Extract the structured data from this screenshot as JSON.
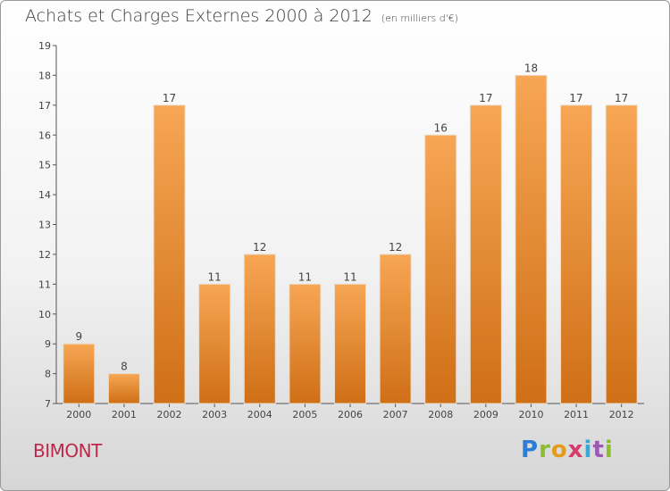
{
  "title": "Achats et Charges Externes 2000 à 2012",
  "subtitle": "(en milliers d'€)",
  "commune": "BIMONT",
  "brand": "Proxiti",
  "colors": {
    "bar_top": "#f7a654",
    "bar_bottom": "#cf6f16",
    "axis": "#555555",
    "grid": "#cccccc",
    "commune": "#c0284a"
  },
  "chart_data": {
    "type": "bar",
    "categories": [
      "2000",
      "2001",
      "2002",
      "2003",
      "2004",
      "2005",
      "2006",
      "2007",
      "2008",
      "2009",
      "2010",
      "2011",
      "2012"
    ],
    "values": [
      9,
      8,
      17,
      11,
      12,
      11,
      11,
      12,
      16,
      17,
      18,
      17,
      17
    ],
    "ylim": [
      7,
      19
    ],
    "yticks": [
      7,
      8,
      9,
      10,
      11,
      12,
      13,
      14,
      15,
      16,
      17,
      18,
      19
    ],
    "xlabel": "",
    "ylabel": "",
    "grid": false,
    "legend": "none"
  }
}
